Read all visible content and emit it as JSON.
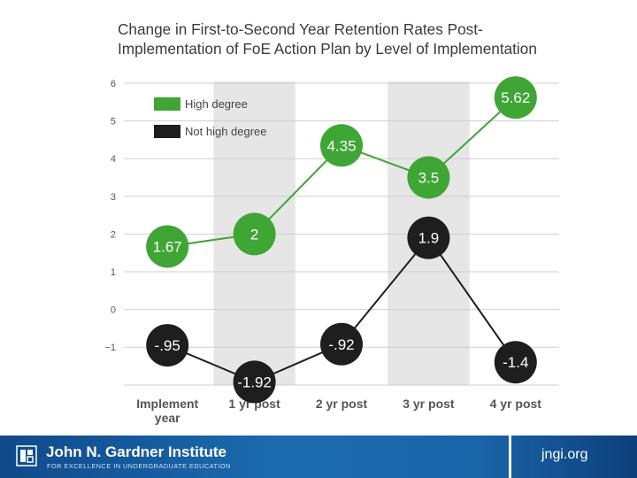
{
  "chart_data": {
    "type": "line",
    "title_line1": "Change in First-to-Second Year Retention Rates Post-",
    "title_line2": "Implementation of FoE Action Plan by Level of Implementation",
    "categories": [
      "Implement year",
      "1 yr post",
      "2 yr post",
      "3 yr post",
      "4 yr post"
    ],
    "category_lines": [
      [
        "Implement",
        "year"
      ],
      [
        "1 yr post"
      ],
      [
        "2 yr post"
      ],
      [
        "3 yr post"
      ],
      [
        "4 yr post"
      ]
    ],
    "y_ticks": [
      6,
      5,
      4,
      3,
      2,
      1,
      0,
      -1
    ],
    "y_tick_labels": [
      "6",
      "5",
      "4",
      "3",
      "2",
      "1",
      "0",
      "−1"
    ],
    "ylim": [
      -2.1,
      6
    ],
    "grid": true,
    "shaded_bands": [
      "1 yr post",
      "3 yr post"
    ],
    "legend_position": "top-left",
    "series": [
      {
        "name": "High degree",
        "color": "#3fa535",
        "values": [
          1.67,
          2,
          4.35,
          3.5,
          5.62
        ],
        "labels": [
          "1.67",
          "2",
          "4.35",
          "3.5",
          "5.62"
        ]
      },
      {
        "name": "Not high degree",
        "color": "#1e1e1e",
        "values": [
          -0.95,
          -1.92,
          -0.92,
          1.9,
          -1.4
        ],
        "labels": [
          "-.95",
          "-1.92",
          "-.92",
          "1.9",
          "-1.4"
        ]
      }
    ]
  },
  "footer": {
    "org_name": "John N. Gardner Institute",
    "org_tagline": "FOR EXCELLENCE IN UNDERGRADUATE EDUCATION",
    "website": "jngi.org",
    "logo_icon": "institute-logo-icon"
  }
}
